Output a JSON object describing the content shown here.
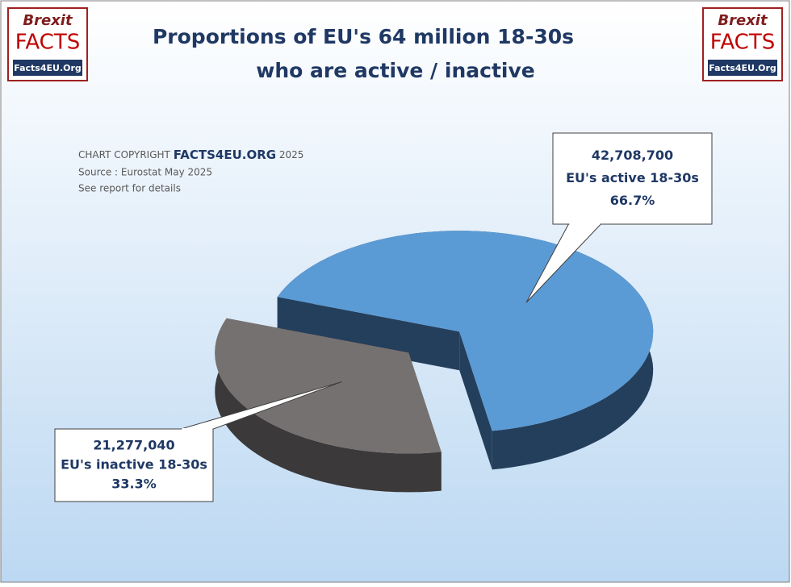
{
  "chart_data": {
    "type": "pie3d",
    "title": [
      "Proportions of EU's 64 million 18-30s",
      "who are active / inactive"
    ],
    "categories": [
      "EU's active 18-30s",
      "EU's inactive 18-30s"
    ],
    "values": [
      42708700,
      21277040
    ],
    "value_labels": [
      "42,708,700",
      "21,277,040"
    ],
    "percent_values": [
      66.7,
      33.3
    ],
    "percent_labels": [
      "66.7%",
      "33.3%"
    ],
    "colors": [
      "#5b9bd5",
      "#767171"
    ],
    "side_colors": [
      "#243f5c",
      "#3b3939"
    ]
  },
  "copyright": {
    "prefix": "CHART COPYRIGHT",
    "brand": "FACTS4EU.ORG",
    "year": "2025",
    "source": "Source : Eurostat May 2025",
    "note": "See report for details"
  },
  "logo": {
    "line1": "Brexit",
    "line2": "FACTS",
    "line3": "Facts4EU.Org"
  }
}
